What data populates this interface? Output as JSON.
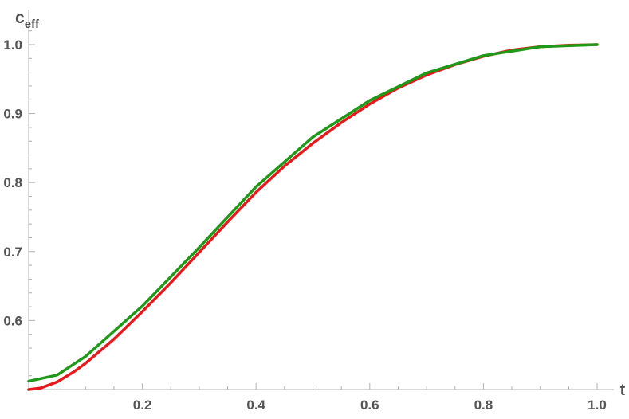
{
  "chart_data": {
    "type": "line",
    "xlabel": "t",
    "ylabel": "c",
    "ylabel_sub": "eff",
    "xlim": [
      0,
      1.0
    ],
    "ylim": [
      0.5,
      1.03
    ],
    "x_ticks": [
      0.2,
      0.4,
      0.6,
      0.8,
      1.0
    ],
    "x_tick_labels": [
      "0.2",
      "0.4",
      "0.6",
      "0.8",
      "1.0"
    ],
    "y_ticks": [
      0.6,
      0.7,
      0.8,
      0.9,
      1.0
    ],
    "y_tick_labels": [
      "0.6",
      "0.7",
      "0.8",
      "0.9",
      "1.0"
    ],
    "grid": false,
    "series": [
      {
        "color": "#e8191c",
        "x": [
          0.0,
          0.02,
          0.05,
          0.08,
          0.1,
          0.15,
          0.2,
          0.25,
          0.3,
          0.35,
          0.4,
          0.45,
          0.5,
          0.55,
          0.6,
          0.65,
          0.7,
          0.75,
          0.8,
          0.85,
          0.9,
          0.95,
          1.0
        ],
        "y": [
          0.5,
          0.502,
          0.511,
          0.526,
          0.538,
          0.573,
          0.613,
          0.655,
          0.699,
          0.743,
          0.786,
          0.824,
          0.857,
          0.887,
          0.914,
          0.937,
          0.956,
          0.971,
          0.983,
          0.992,
          0.997,
          0.999,
          1.0
        ]
      },
      {
        "color": "#1e9a18",
        "x": [
          0.0,
          0.05,
          0.1,
          0.2,
          0.3,
          0.4,
          0.5,
          0.6,
          0.7,
          0.8,
          0.9,
          1.0
        ],
        "y": [
          0.512,
          0.521,
          0.548,
          0.621,
          0.706,
          0.794,
          0.866,
          0.919,
          0.959,
          0.984,
          0.997,
          1.0
        ]
      }
    ]
  }
}
